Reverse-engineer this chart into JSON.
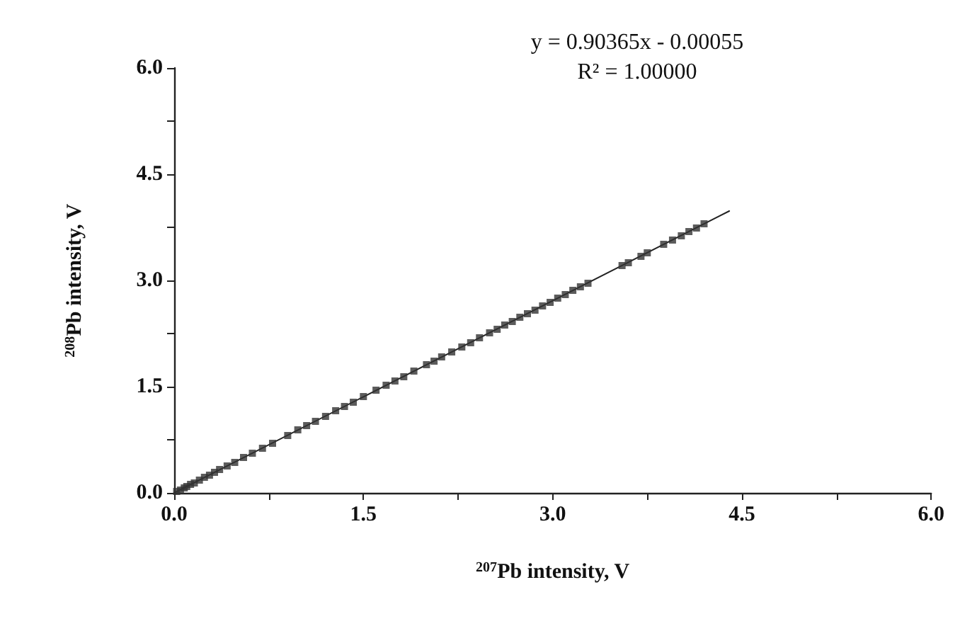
{
  "chart_data": {
    "type": "scatter",
    "xlabel": "$^{207}$Pb intensity, V",
    "ylabel": "$^{208}$Pb intensity, V",
    "annotations": [
      "y = 0.90365x - 0.00055",
      "R² = 1.00000"
    ],
    "xlim": [
      0,
      6
    ],
    "ylim": [
      0,
      6
    ],
    "xticks": [
      {
        "value": 0,
        "label": "0.0"
      },
      {
        "value": 0.75,
        "label": null
      },
      {
        "value": 1.5,
        "label": "1.5"
      },
      {
        "value": 2.25,
        "label": null
      },
      {
        "value": 3,
        "label": "3.0"
      },
      {
        "value": 3.75,
        "label": null
      },
      {
        "value": 4.5,
        "label": "4.5"
      },
      {
        "value": 5.25,
        "label": null
      },
      {
        "value": 6,
        "label": "6.0"
      }
    ],
    "yticks": [
      {
        "value": 0,
        "label": "0.0"
      },
      {
        "value": 0.75,
        "label": null
      },
      {
        "value": 1.5,
        "label": "1.5"
      },
      {
        "value": 2.25,
        "label": null
      },
      {
        "value": 3,
        "label": "3.0"
      },
      {
        "value": 3.75,
        "label": null
      },
      {
        "value": 4.5,
        "label": "4.5"
      },
      {
        "value": 5.25,
        "label": null
      },
      {
        "value": 6,
        "label": "6.0"
      }
    ],
    "grid": false,
    "marker": "square",
    "series": [
      {
        "color": "#333333",
        "x": [
          0.02,
          0.05,
          0.08,
          0.1,
          0.13,
          0.16,
          0.2,
          0.24,
          0.28,
          0.32,
          0.36,
          0.42,
          0.48,
          0.55,
          0.62,
          0.7,
          0.78,
          0.9,
          0.98,
          1.05,
          1.12,
          1.2,
          1.28,
          1.35,
          1.42,
          1.5,
          1.6,
          1.68,
          1.75,
          1.82,
          1.9,
          2.0,
          2.06,
          2.12,
          2.2,
          2.28,
          2.35,
          2.42,
          2.5,
          2.56,
          2.62,
          2.68,
          2.74,
          2.8,
          2.86,
          2.92,
          2.98,
          3.04,
          3.1,
          3.16,
          3.22,
          3.28,
          3.55,
          3.6,
          3.7,
          3.75,
          3.88,
          3.95,
          4.02,
          4.08,
          4.14,
          4.2
        ],
        "values": [
          0.02,
          0.04,
          0.07,
          0.09,
          0.12,
          0.14,
          0.18,
          0.22,
          0.25,
          0.29,
          0.33,
          0.38,
          0.43,
          0.5,
          0.56,
          0.63,
          0.7,
          0.81,
          0.89,
          0.95,
          1.01,
          1.08,
          1.16,
          1.22,
          1.28,
          1.36,
          1.45,
          1.52,
          1.58,
          1.64,
          1.72,
          1.81,
          1.86,
          1.92,
          1.99,
          2.06,
          2.12,
          2.19,
          2.26,
          2.31,
          2.37,
          2.42,
          2.48,
          2.53,
          2.58,
          2.64,
          2.69,
          2.75,
          2.8,
          2.86,
          2.91,
          2.96,
          3.21,
          3.25,
          3.34,
          3.39,
          3.51,
          3.57,
          3.63,
          3.69,
          3.74,
          3.8
        ]
      },
      {
        "type": "line",
        "color": "#222222",
        "marker": "none",
        "line_style": "solid",
        "x": [
          0,
          4.4
        ],
        "values": [
          0,
          3.98
        ]
      }
    ]
  }
}
